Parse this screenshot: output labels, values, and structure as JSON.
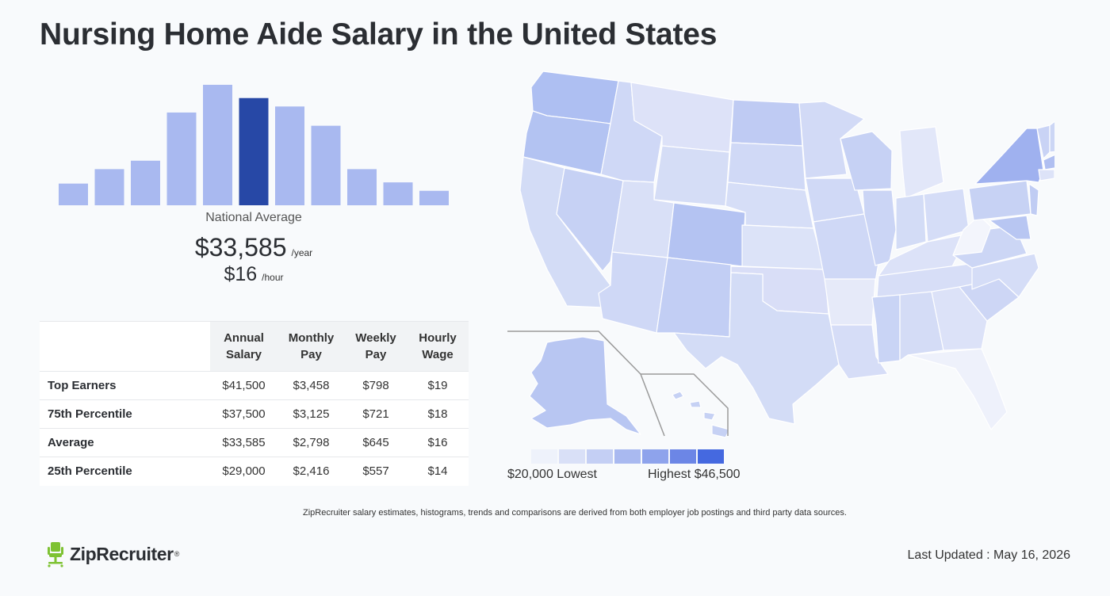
{
  "page": {
    "title": "Nursing Home Aide Salary in the United States",
    "national_average_label": "National Average",
    "annual_value": "$33,585",
    "annual_unit": "/year",
    "hourly_value": "$16",
    "hourly_unit": "/hour",
    "footnote": "ZipRecruiter salary estimates, histograms, trends and comparisons are derived from both employer job postings and third party data sources.",
    "logo_text": "ZipRecruiter",
    "logo_mark": "®",
    "last_updated": "Last Updated : May 16, 2026"
  },
  "table": {
    "headers": [
      {
        "line1": "",
        "line2": ""
      },
      {
        "line1": "Annual",
        "line2": "Salary"
      },
      {
        "line1": "Monthly",
        "line2": "Pay"
      },
      {
        "line1": "Weekly",
        "line2": "Pay"
      },
      {
        "line1": "Hourly",
        "line2": "Wage"
      }
    ],
    "rows": [
      {
        "label": "Top Earners",
        "annual": "$41,500",
        "monthly": "$3,458",
        "weekly": "$798",
        "hourly": "$19"
      },
      {
        "label": "75th Percentile",
        "annual": "$37,500",
        "monthly": "$3,125",
        "weekly": "$721",
        "hourly": "$18"
      },
      {
        "label": "Average",
        "annual": "$33,585",
        "monthly": "$2,798",
        "weekly": "$645",
        "hourly": "$16"
      },
      {
        "label": "25th Percentile",
        "annual": "$29,000",
        "monthly": "$2,416",
        "weekly": "$557",
        "hourly": "$14"
      }
    ]
  },
  "legend": {
    "low_label": "$20,000 Lowest",
    "high_label": "Highest $46,500",
    "colors": [
      "#eef2fb",
      "#d9e0f7",
      "#c4cff4",
      "#a9b9f0",
      "#8ea3ec",
      "#6c86e6",
      "#4569e0"
    ]
  },
  "chart_data": [
    {
      "type": "bar",
      "title": "",
      "relative_frequencies": [
        0.18,
        0.3,
        0.37,
        0.77,
        1.0,
        0.89,
        0.82,
        0.66,
        0.3,
        0.19,
        0.12
      ],
      "highlighted_index": 5,
      "colors": {
        "default": "#a9b9f0",
        "highlight": "#2748a6"
      }
    },
    {
      "type": "heatmap",
      "description": "choropleth of US states",
      "scale_min": 20000,
      "scale_max": 46500
    }
  ]
}
